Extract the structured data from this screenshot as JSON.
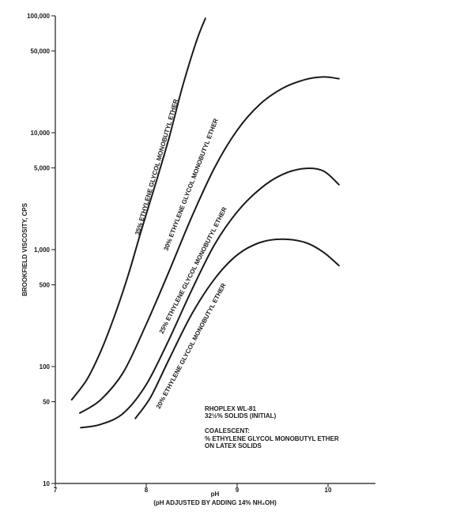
{
  "chart_data": {
    "type": "line",
    "title": "",
    "xlabel": "pH",
    "xlabel_note": "(pH ADJUSTED BY ADDING 14% NH₄OH)",
    "ylabel": "BROOKFIELD VISCOSITY, CPS",
    "xlim": [
      7,
      10.4
    ],
    "ylim": [
      10,
      100000
    ],
    "yscale": "log",
    "grid": false,
    "x_ticks": [
      "7",
      "8",
      "9",
      "10"
    ],
    "x_tick_values": [
      7,
      8,
      9,
      10
    ],
    "y_ticks": [
      "10",
      "50",
      "100",
      "500",
      "1,000",
      "5,000",
      "10,000",
      "50,000",
      "100,000"
    ],
    "y_tick_values": [
      10,
      50,
      100,
      500,
      1000,
      5000,
      10000,
      50000,
      100000
    ],
    "series": [
      {
        "name": "35% ETHYLENE GLYCOL MONOBUTYL ETHER",
        "x": [
          7.18,
          7.35,
          7.5,
          7.65,
          7.8,
          7.95,
          8.1,
          8.25,
          8.4,
          8.55,
          8.65
        ],
        "y": [
          52,
          78,
          135,
          270,
          600,
          1500,
          3600,
          9000,
          25000,
          60000,
          95000
        ]
      },
      {
        "name": "30% ETHYLENE GLYCOL MONOBUTYL ETHER",
        "x": [
          7.27,
          7.5,
          7.75,
          8.0,
          8.25,
          8.5,
          8.75,
          9.0,
          9.25,
          9.5,
          9.75,
          9.95,
          10.12
        ],
        "y": [
          40,
          52,
          90,
          230,
          650,
          1900,
          5000,
          10500,
          17500,
          24000,
          28500,
          30000,
          29000
        ]
      },
      {
        "name": "25% ETHYLENE GLYCOL MONOBUTYL ETHER",
        "x": [
          7.28,
          7.5,
          7.75,
          8.0,
          8.25,
          8.5,
          8.75,
          9.0,
          9.25,
          9.5,
          9.75,
          9.95,
          10.12
        ],
        "y": [
          30,
          32,
          40,
          70,
          170,
          450,
          1100,
          2100,
          3300,
          4400,
          4950,
          4700,
          3600
        ]
      },
      {
        "name": "20% ETHYLENE GLYCOL MONOBUTYL ETHER",
        "x": [
          7.88,
          8.05,
          8.25,
          8.5,
          8.75,
          9.0,
          9.25,
          9.5,
          9.75,
          9.95,
          10.12
        ],
        "y": [
          36,
          55,
          115,
          280,
          560,
          900,
          1150,
          1230,
          1150,
          950,
          730
        ]
      }
    ],
    "annotations": [
      "RHOPLEX WL-81",
      "32½% SOLIDS (INITIAL)",
      "COALESCENT:",
      "% ETHYLENE GLYCOL MONOBUTYL ETHER",
      "ON LATEX SOLIDS"
    ]
  },
  "colors": {
    "ink": "#1a1a1a",
    "background": "#ffffff"
  }
}
